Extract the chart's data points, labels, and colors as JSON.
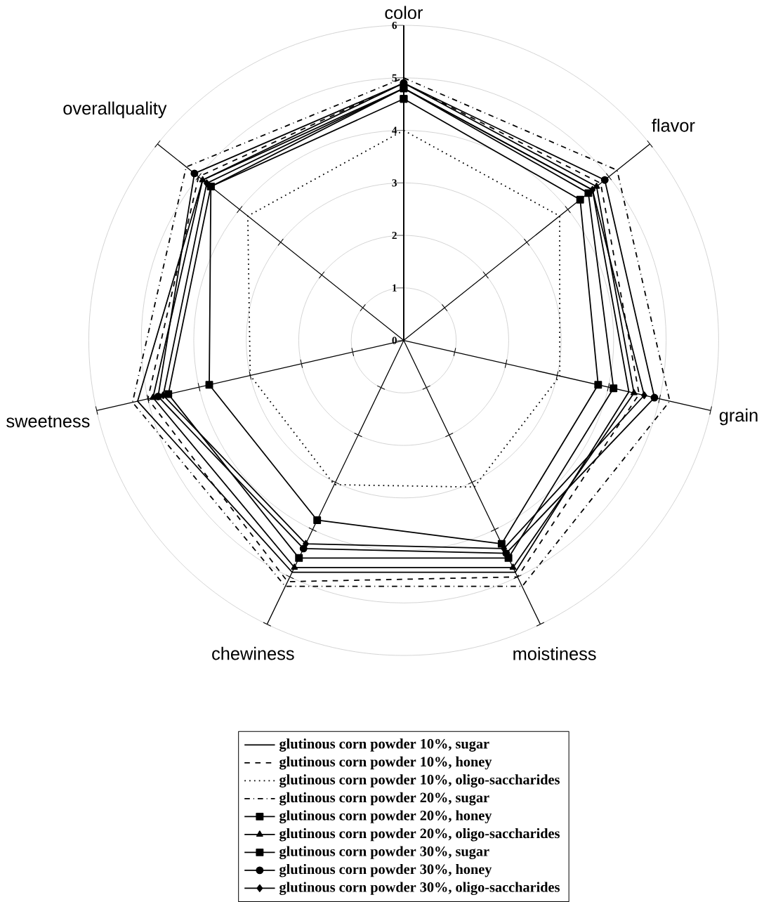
{
  "chart_data": {
    "type": "radar",
    "categories": [
      "color",
      "flavor",
      "grain",
      "moistiness",
      "chewiness",
      "sweetness",
      "overallquality"
    ],
    "ylim": [
      0,
      6
    ],
    "yticks": [
      {
        "value": 0,
        "label": "0"
      },
      {
        "value": 1,
        "label": "1"
      },
      {
        "value": 2,
        "label": "2"
      },
      {
        "value": 3,
        "label": "3"
      },
      {
        "value": 4,
        "label": "4"
      },
      {
        "value": 5,
        "label": "5"
      },
      {
        "value": 6,
        "label": "6"
      }
    ],
    "legend": "bottom",
    "grid": true,
    "series": [
      {
        "name": "glutinous corn powder 10%, sugar",
        "color": "#000000",
        "line_style": "solid",
        "marker": "none",
        "values": [
          4.8,
          4.6,
          4.4,
          4.9,
          4.9,
          5.2,
          4.9
        ]
      },
      {
        "name": "glutinous corn powder 10%, honey",
        "color": "#000000",
        "line_style": "dashed",
        "marker": "none",
        "values": [
          4.9,
          4.8,
          4.6,
          5.0,
          5.1,
          5.0,
          5.0
        ]
      },
      {
        "name": "glutinous corn powder 10%, oligo-saccharides",
        "color": "#000000",
        "line_style": "dotted",
        "marker": "none",
        "values": [
          4.0,
          3.8,
          3.05,
          3.1,
          3.05,
          3.0,
          3.8
        ]
      },
      {
        "name": "glutinous corn powder 20%, sugar",
        "color": "#000000",
        "line_style": "dashdot",
        "marker": "none",
        "values": [
          5.0,
          5.2,
          5.2,
          5.2,
          5.2,
          5.3,
          5.3
        ]
      },
      {
        "name": "glutinous corn powder 20%, honey",
        "color": "#000000",
        "line_style": "solid",
        "marker": "square",
        "values": [
          4.8,
          4.5,
          4.1,
          4.6,
          4.6,
          4.6,
          4.7
        ]
      },
      {
        "name": "glutinous corn powder 20%, oligo-saccharides",
        "color": "#000000",
        "line_style": "solid",
        "marker": "triangle",
        "values": [
          4.9,
          4.7,
          4.5,
          4.8,
          4.8,
          4.9,
          4.9
        ]
      },
      {
        "name": "glutinous corn powder 30%, sugar",
        "color": "#000000",
        "line_style": "solid",
        "marker": "square",
        "values": [
          4.6,
          4.3,
          3.8,
          4.3,
          3.8,
          3.8,
          4.7
        ]
      },
      {
        "name": "glutinous corn powder 30%, honey",
        "color": "#000000",
        "line_style": "solid",
        "marker": "circle",
        "values": [
          4.9,
          4.9,
          4.9,
          4.5,
          4.4,
          4.8,
          5.1
        ]
      },
      {
        "name": "glutinous corn powder 30%, oligo-saccharides",
        "color": "#000000",
        "line_style": "solid",
        "marker": "diamond",
        "values": [
          4.8,
          4.6,
          4.7,
          4.4,
          4.3,
          4.7,
          4.8
        ]
      }
    ]
  }
}
